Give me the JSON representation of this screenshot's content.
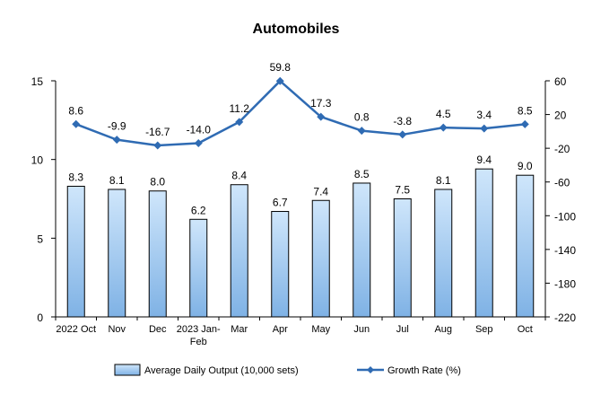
{
  "chart_data": {
    "type": "bar+line",
    "title": "Automobiles",
    "categories": [
      "2022 Oct",
      "Nov",
      "Dec",
      "2023 Jan-Feb",
      "Mar",
      "Apr",
      "May",
      "Jun",
      "Jul",
      "Aug",
      "Sep",
      "Oct"
    ],
    "series": [
      {
        "name": "Average Daily Output (10,000 sets)",
        "type": "bar",
        "axis": "left",
        "values": [
          8.3,
          8.1,
          8.0,
          6.2,
          8.4,
          6.7,
          7.4,
          8.5,
          7.5,
          8.1,
          9.4,
          9.0
        ],
        "labels": [
          "8.3",
          "8.1",
          "8.0",
          "6.2",
          "8.4",
          "6.7",
          "7.4",
          "8.5",
          "7.5",
          "8.1",
          "9.4",
          "9.0"
        ]
      },
      {
        "name": "Growth Rate (%)",
        "type": "line",
        "axis": "right",
        "values": [
          8.6,
          -9.9,
          -16.7,
          -14.0,
          11.2,
          59.8,
          17.3,
          0.8,
          -3.8,
          4.5,
          3.4,
          8.5
        ],
        "labels": [
          "8.6",
          "-9.9",
          "-16.7",
          "-14.0",
          "11.2",
          "59.8",
          "17.3",
          "0.8",
          "-3.8",
          "4.5",
          "3.4",
          "8.5"
        ]
      }
    ],
    "y_left": {
      "lim": [
        0,
        15
      ],
      "ticks": [
        0,
        5,
        10,
        15
      ],
      "tick_labels": [
        "0",
        "5",
        "10",
        "15"
      ]
    },
    "y_right": {
      "lim": [
        -220,
        60
      ],
      "ticks": [
        -220,
        -180,
        -140,
        -100,
        -60,
        -20,
        20,
        60
      ],
      "tick_labels": [
        "-220",
        "-180",
        "-140",
        "-100",
        "-60",
        "-20",
        "20",
        "60"
      ]
    },
    "legend_position": "bottom",
    "grid": false,
    "colors": {
      "bar_fill_top": "#cfe6fb",
      "bar_fill_bottom": "#7fb2e5",
      "bar_stroke": "#000000",
      "line": "#2f6bb3"
    }
  }
}
